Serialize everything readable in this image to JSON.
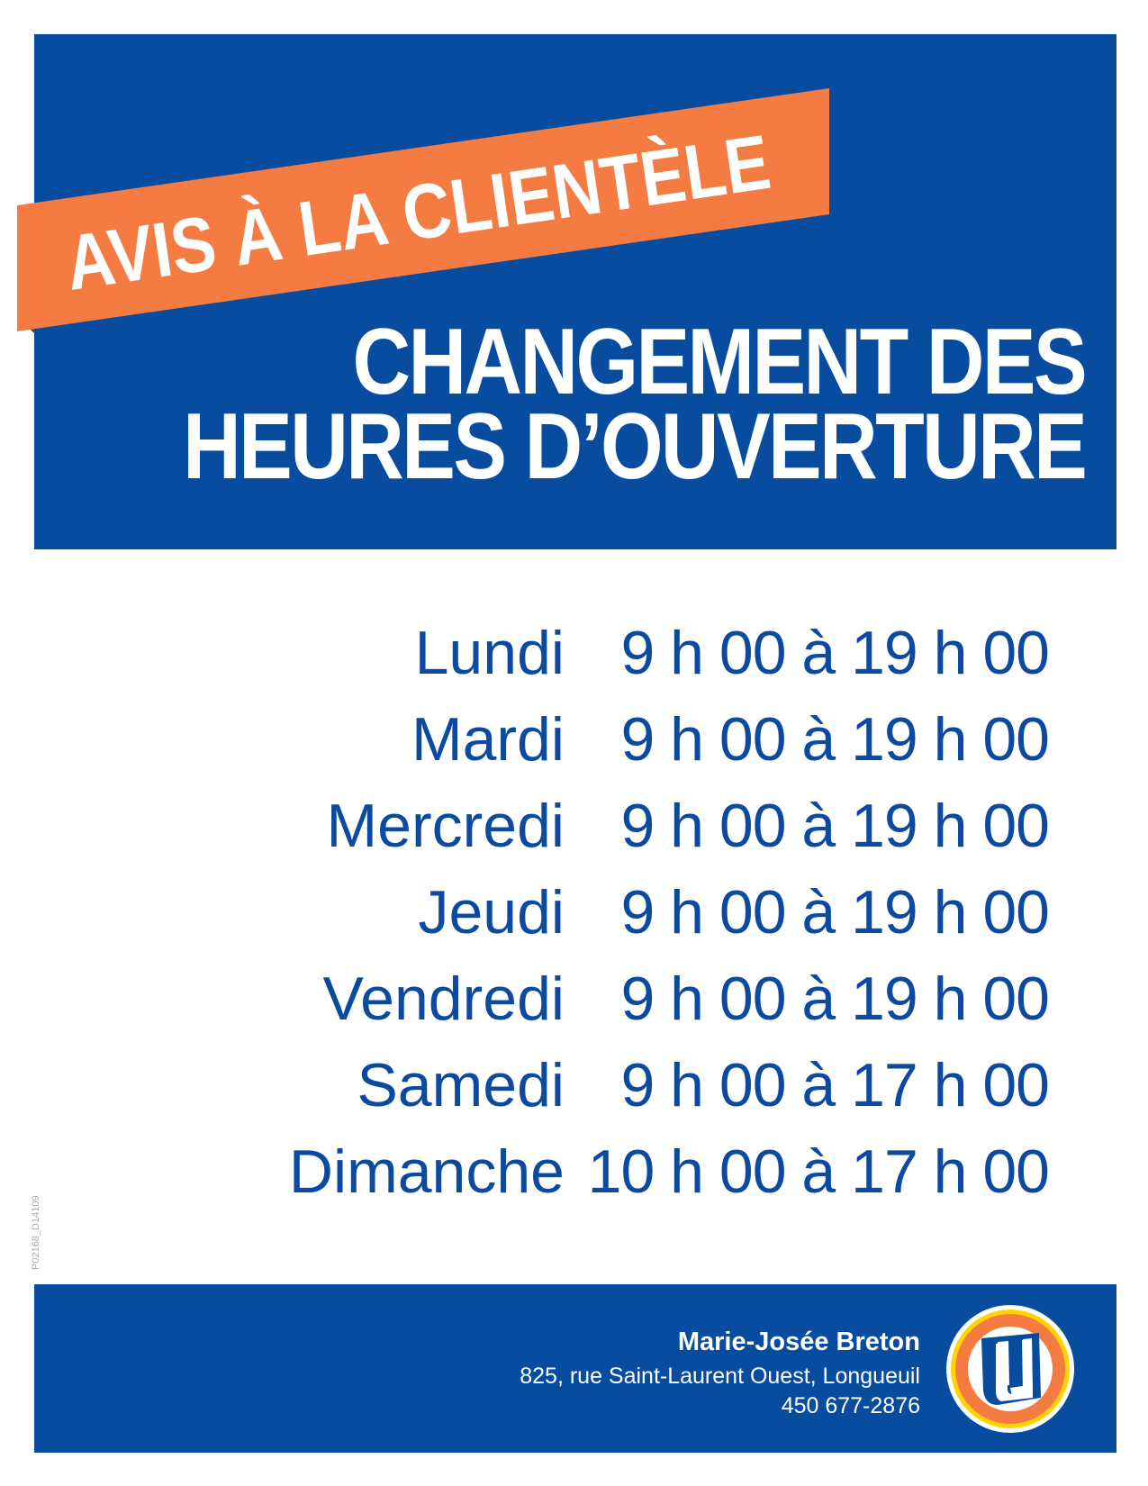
{
  "banner": {
    "label": "AVIS À LA CLIENTÈLE"
  },
  "title": {
    "line1": "CHANGEMENT DES",
    "line2": "HEURES D’OUVERTURE"
  },
  "schedule": [
    {
      "day": "Lundi",
      "hours": "9 h 00 à 19 h 00"
    },
    {
      "day": "Mardi",
      "hours": "9 h 00 à 19 h 00"
    },
    {
      "day": "Mercredi",
      "hours": "9 h 00 à 19 h 00"
    },
    {
      "day": "Jeudi",
      "hours": "9 h 00 à 19 h 00"
    },
    {
      "day": "Vendredi",
      "hours": "9 h 00 à 19 h 00"
    },
    {
      "day": "Samedi",
      "hours": "9 h 00 à 17 h 00"
    },
    {
      "day": "Dimanche",
      "hours": "10 h 00 à 17 h 00"
    }
  ],
  "document_code": "P02168_D14109",
  "footer": {
    "name": "Marie-Josée Breton",
    "address": "825, rue Saint-Laurent Ouest, Longueuil",
    "phone": "450 677-2876",
    "logo_letter": "U"
  },
  "colors": {
    "blue": "#084ca0",
    "orange": "#f47b42",
    "yellow": "#ffd400",
    "text_blue": "#0a4aa0"
  }
}
